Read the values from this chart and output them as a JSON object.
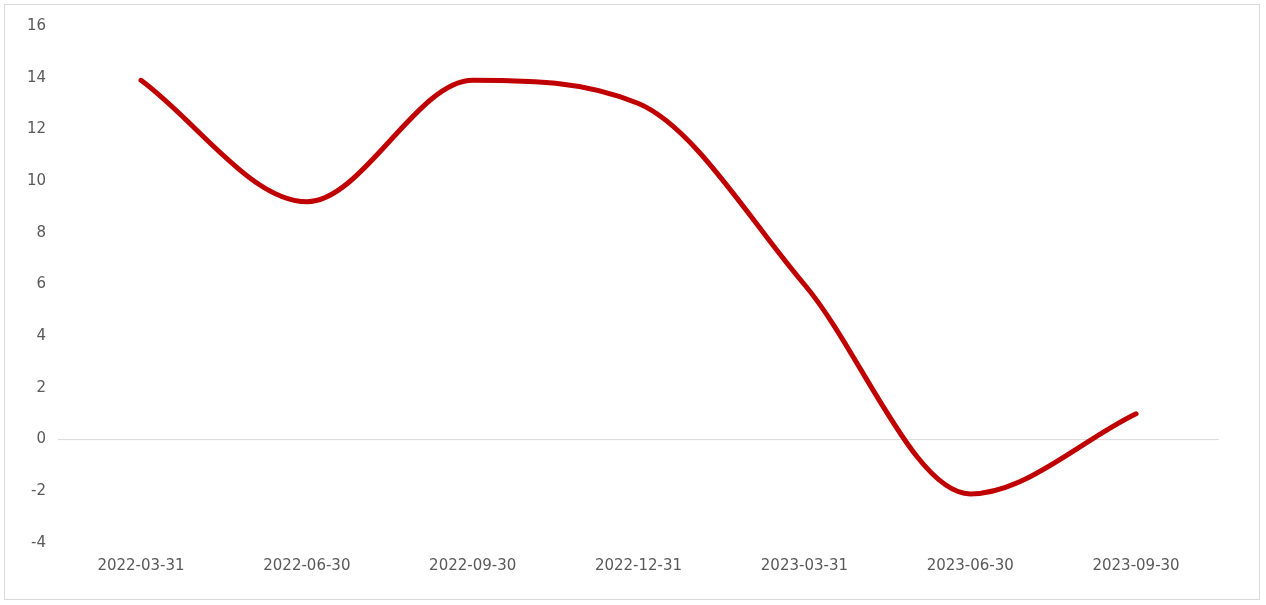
{
  "chart_data": {
    "type": "line",
    "categories": [
      "2022-03-31",
      "2022-06-30",
      "2022-09-30",
      "2022-12-31",
      "2023-03-31",
      "2023-06-30",
      "2023-09-30"
    ],
    "series": [
      {
        "color": "#c00000",
        "values": [
          13.9,
          9.2,
          13.9,
          13.0,
          6.0,
          -2.1,
          1.0
        ]
      }
    ],
    "ylim": [
      -4,
      16
    ],
    "yticks": [
      -4,
      -2,
      0,
      2,
      4,
      6,
      8,
      10,
      12,
      14,
      16
    ],
    "grid": false,
    "legend": false,
    "marker": "none",
    "line_style": "solid",
    "ref_lines": [
      {
        "axis": "y",
        "value": 0,
        "color": "#d9d9d9"
      }
    ]
  }
}
